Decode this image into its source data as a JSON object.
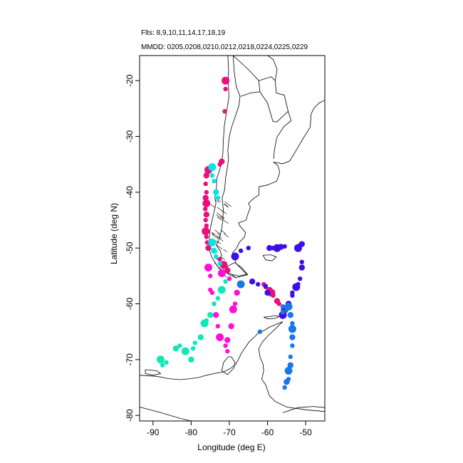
{
  "header": {
    "flights": "Flts: 8,9,10,11,14,17,18,19",
    "dates": "MMDD: 0205,0208,0210,0212,0218,0224,0225,0229"
  },
  "chart_data": {
    "type": "scatter",
    "title": "",
    "xlabel": "Longitude (deg E)",
    "ylabel": "Latitude (deg N)",
    "xlim": [
      -93.5,
      -45
    ],
    "ylim": [
      -81,
      -15.5
    ],
    "x_ticks": [
      -90,
      -80,
      -70,
      -60,
      -50
    ],
    "y_ticks": [
      -20,
      -30,
      -40,
      -50,
      -60,
      -70,
      -80
    ],
    "x_tick_labels": [
      "-90",
      "-80",
      "-70",
      "-60",
      "-50"
    ],
    "y_tick_labels": [
      "-20",
      "-30",
      "-40",
      "-50",
      "-60",
      "-70",
      "-80"
    ],
    "grid": false,
    "legend": "none",
    "background_map": "coastlines of southern South America and the Antarctic Peninsula",
    "series": [
      {
        "color": "#e8107a",
        "points": [
          [
            -71,
            -20
          ],
          [
            -71,
            -21.5
          ],
          [
            -71.2,
            -25.5
          ],
          [
            -72,
            -34.5
          ],
          [
            -72.5,
            -35
          ],
          [
            -75.5,
            -36
          ],
          [
            -76,
            -37
          ],
          [
            -76.2,
            -38.5
          ],
          [
            -76,
            -40
          ],
          [
            -76.2,
            -41
          ],
          [
            -76,
            -42
          ],
          [
            -76.3,
            -43
          ],
          [
            -76,
            -44
          ],
          [
            -76.2,
            -45
          ],
          [
            -76,
            -46
          ],
          [
            -76.2,
            -47
          ],
          [
            -76,
            -48
          ],
          [
            -75.8,
            -49
          ],
          [
            -75.5,
            -50
          ],
          [
            -72.5,
            -52
          ],
          [
            -71.5,
            -53
          ],
          [
            -70.5,
            -54
          ],
          [
            -61,
            -56.5
          ],
          [
            -60.5,
            -57
          ],
          [
            -59.5,
            -57.5
          ],
          [
            -59,
            -58
          ],
          [
            -58.5,
            -58.5
          ],
          [
            -57.5,
            -59.5
          ],
          [
            -57,
            -60
          ],
          [
            -56,
            -60.5
          ],
          [
            -55.5,
            -61
          ]
        ]
      },
      {
        "color": "#00e5e5",
        "points": [
          [
            -74.5,
            -35.5
          ],
          [
            -74.5,
            -37
          ],
          [
            -74,
            -38
          ],
          [
            -73.5,
            -40
          ],
          [
            -73,
            -41
          ],
          [
            -74.5,
            -49
          ],
          [
            -74,
            -50.5
          ],
          [
            -73.5,
            -51.5
          ],
          [
            -72.5,
            -52.8
          ]
        ]
      },
      {
        "color": "#ff10d8",
        "points": [
          [
            -75.5,
            -53.5
          ],
          [
            -75,
            -57.5
          ],
          [
            -74.5,
            -58
          ],
          [
            -73.5,
            -62
          ],
          [
            -73,
            -64
          ],
          [
            -72.5,
            -66
          ],
          [
            -70.5,
            -66.5
          ],
          [
            -71,
            -67.5
          ],
          [
            -70.5,
            -68.5
          ],
          [
            -69.5,
            -64
          ],
          [
            -69,
            -61
          ],
          [
            -68.5,
            -60
          ],
          [
            -68,
            -58
          ],
          [
            -74,
            -60
          ],
          [
            -75,
            -55
          ],
          [
            -72,
            -54.5
          ],
          [
            -70,
            -55.5
          ]
        ]
      },
      {
        "color": "#10e8b8",
        "points": [
          [
            -88,
            -70
          ],
          [
            -87.5,
            -71
          ],
          [
            -86.5,
            -70.5
          ],
          [
            -84,
            -68
          ],
          [
            -83,
            -67.5
          ],
          [
            -81.5,
            -68.5
          ],
          [
            -80,
            -70
          ],
          [
            -79.5,
            -68
          ],
          [
            -79,
            -67
          ],
          [
            -77.5,
            -66
          ],
          [
            -76.5,
            -63.5
          ],
          [
            -76,
            -63
          ],
          [
            -75,
            -62
          ],
          [
            -74,
            -60
          ],
          [
            -73,
            -59
          ],
          [
            -72,
            -57.5
          ],
          [
            -71,
            -56
          ]
        ]
      },
      {
        "color": "#3b10e8",
        "points": [
          [
            -68.5,
            -51.5
          ],
          [
            -67,
            -50.5
          ],
          [
            -65,
            -50
          ],
          [
            -59.5,
            -50
          ],
          [
            -58.5,
            -50
          ],
          [
            -57.5,
            -50
          ],
          [
            -56.5,
            -49.8
          ],
          [
            -55.5,
            -49.7
          ],
          [
            -51.5,
            -49.5
          ],
          [
            -51,
            -49.3
          ],
          [
            -52,
            -50
          ],
          [
            -51,
            -52.5
          ],
          [
            -51,
            -53.5
          ],
          [
            -51.5,
            -55.5
          ],
          [
            -52,
            -56.5
          ],
          [
            -52.5,
            -57
          ],
          [
            -53.5,
            -58
          ],
          [
            -53.5,
            -58.5
          ],
          [
            -54.5,
            -60
          ],
          [
            -55.5,
            -61
          ],
          [
            -56,
            -62
          ],
          [
            -60,
            -58
          ],
          [
            -60.5,
            -56.8
          ],
          [
            -62.5,
            -56.5
          ],
          [
            -64,
            -56
          ]
        ]
      },
      {
        "color": "#1878e8",
        "points": [
          [
            -67,
            -56.5
          ],
          [
            -62,
            -65
          ],
          [
            -56,
            -61.5
          ],
          [
            -54,
            -62
          ],
          [
            -53.5,
            -63.5
          ],
          [
            -53.5,
            -64.5
          ],
          [
            -53.5,
            -66
          ],
          [
            -53.5,
            -67.5
          ],
          [
            -54,
            -69.5
          ],
          [
            -54,
            -71
          ],
          [
            -54.5,
            -72
          ],
          [
            -54.5,
            -73.5
          ],
          [
            -55,
            -74
          ],
          [
            -55.5,
            -75
          ],
          [
            -55,
            -61
          ],
          [
            -54.5,
            -60.5
          ],
          [
            -56,
            -60.5
          ]
        ]
      }
    ]
  }
}
